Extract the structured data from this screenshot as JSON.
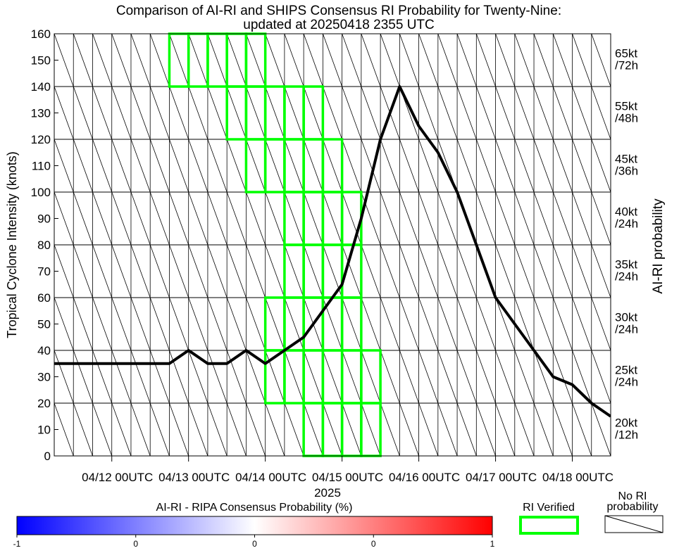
{
  "chart_data": {
    "type": "line",
    "title_line1": "Comparison of AI-RI and SHIPS Consensus RI Probability for Twenty-Nine:",
    "title_line2": "updated at 20250418 2355 UTC",
    "ylabel": "Tropical Cyclone Intensity (knots)",
    "y2label": "AI-RI probability",
    "xlabel": "2025",
    "ylim": [
      0,
      160
    ],
    "yticks": [
      0,
      10,
      20,
      30,
      40,
      50,
      60,
      70,
      80,
      90,
      100,
      110,
      120,
      130,
      140,
      150,
      160
    ],
    "x_hours_range": [
      -18,
      156
    ],
    "x_tick_hours": [
      0,
      24,
      48,
      72,
      96,
      120,
      144
    ],
    "x_tick_labels": [
      "04/12 00UTC",
      "04/13 00UTC",
      "04/14 00UTC",
      "04/15 00UTC",
      "04/16 00UTC",
      "04/17 00UTC",
      "04/18 00UTC"
    ],
    "right_labels": [
      {
        "line1": "65kt",
        "line2": "/72h",
        "band": [
          140,
          160
        ]
      },
      {
        "line1": "55kt",
        "line2": "/48h",
        "band": [
          120,
          140
        ]
      },
      {
        "line1": "45kt",
        "line2": "/36h",
        "band": [
          100,
          120
        ]
      },
      {
        "line1": "40kt",
        "line2": "/24h",
        "band": [
          80,
          100
        ]
      },
      {
        "line1": "35kt",
        "line2": "/24h",
        "band": [
          60,
          80
        ]
      },
      {
        "line1": "30kt",
        "line2": "/24h",
        "band": [
          40,
          60
        ]
      },
      {
        "line1": "25kt",
        "line2": "/24h",
        "band": [
          20,
          40
        ]
      },
      {
        "line1": "20kt",
        "line2": "/12h",
        "band": [
          0,
          20
        ]
      }
    ],
    "series": [
      {
        "name": "Intensity",
        "color": "#000000",
        "x_hours": [
          -18,
          18,
          24,
          30,
          36,
          42,
          48,
          54,
          60,
          66,
          72,
          78,
          84,
          90,
          96,
          102,
          108,
          114,
          120,
          126,
          132,
          138,
          144,
          150,
          156
        ],
        "y": [
          35,
          35,
          40,
          35,
          35,
          40,
          35,
          40,
          45,
          55,
          65,
          90,
          120,
          140,
          125,
          115,
          100,
          80,
          60,
          50,
          40,
          30,
          27,
          20,
          15
        ]
      }
    ],
    "ri_verified": {
      "color": "#00ff00",
      "bands": [
        {
          "band": [
            140,
            160
          ],
          "start_hours": [
            18,
            24,
            30,
            36,
            42
          ]
        },
        {
          "band": [
            120,
            140
          ],
          "start_hours": [
            36,
            42,
            48,
            54,
            60
          ]
        },
        {
          "band": [
            100,
            120
          ],
          "start_hours": [
            42,
            48,
            54,
            60,
            66
          ]
        },
        {
          "band": [
            80,
            100
          ],
          "start_hours": [
            54,
            60,
            66,
            72
          ]
        },
        {
          "band": [
            60,
            80
          ],
          "start_hours": [
            54,
            60,
            66,
            72
          ]
        },
        {
          "band": [
            40,
            60
          ],
          "start_hours": [
            48,
            54,
            60,
            66,
            72
          ]
        },
        {
          "band": [
            20,
            40
          ],
          "start_hours": [
            48,
            54,
            60,
            66,
            72,
            78
          ]
        },
        {
          "band": [
            0,
            20
          ],
          "start_hours": [
            60,
            66,
            72,
            78
          ]
        }
      ]
    },
    "colorbar": {
      "title": "AI-RI - RIPA Consensus Probability (%)",
      "tick_labels": [
        "-1",
        "0",
        "0",
        "0",
        "1"
      ],
      "min_color": "#0000ff",
      "mid_color": "#ffffff",
      "max_color": "#ff0000"
    },
    "legend": {
      "ri_verified_label": "RI Verified",
      "no_ri_label_line1": "No RI",
      "no_ri_label_line2": "probability"
    }
  }
}
